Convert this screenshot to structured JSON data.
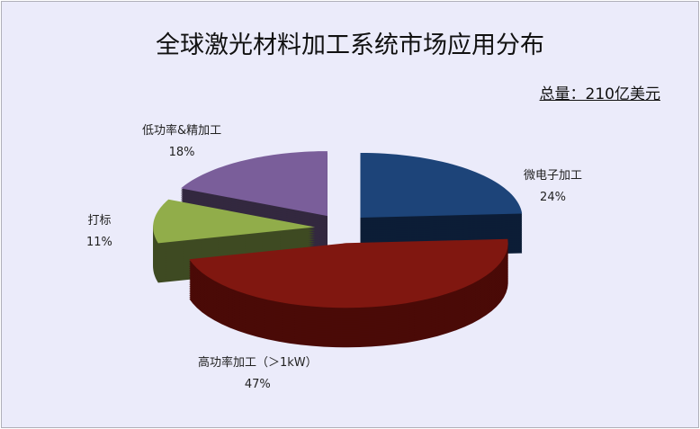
{
  "chart_data": {
    "type": "pie",
    "style": "3d-exploded",
    "title": "全球激光材料加工系统市场应用分布",
    "subtitle": "总量：210亿美元",
    "slices": [
      {
        "label": "微电子加工",
        "value": 24,
        "pct": "24%",
        "color": "#1d4479",
        "side": "#0c1d36"
      },
      {
        "label": "高功率加工（＞1kW）",
        "value": 47,
        "pct": "47%",
        "color": "#801710",
        "side": "#4a0a07"
      },
      {
        "label": "打标",
        "value": 11,
        "pct": "11%",
        "color": "#91ad4a",
        "side": "#3e4a22"
      },
      {
        "label": "低功率&精加工",
        "value": 18,
        "pct": "18%",
        "color": "#7a5e9a",
        "side": "#33283f"
      }
    ],
    "legend": "none"
  }
}
